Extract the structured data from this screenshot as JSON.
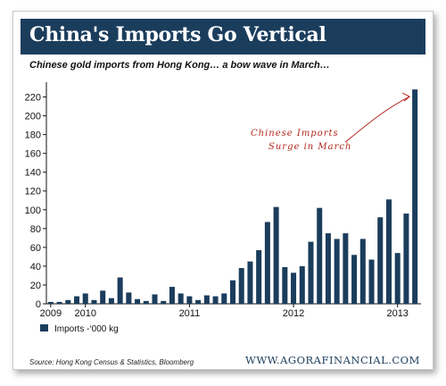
{
  "header": {
    "title": "China's Imports Go Vertical",
    "subtitle": "Chinese gold imports from Hong Kong… a bow wave in March…"
  },
  "colors": {
    "banner": "#1b3d5c",
    "bar": "#1b3d5c",
    "annotation": "#b3261e"
  },
  "chart_data": {
    "type": "bar",
    "title": "",
    "xlabel": "",
    "ylabel": "",
    "ylim": [
      0,
      230
    ],
    "y_ticks": [
      0,
      20,
      40,
      60,
      80,
      100,
      120,
      140,
      160,
      180,
      200,
      220
    ],
    "x_tick_labels": [
      {
        "label": "2009",
        "index": 0
      },
      {
        "label": "2010",
        "index": 4
      },
      {
        "label": "2011",
        "index": 16
      },
      {
        "label": "2012",
        "index": 28
      },
      {
        "label": "2013",
        "index": 40
      }
    ],
    "grid": false,
    "legend_position": "bottom-left",
    "series": [
      {
        "name": "Imports -‘000 kg",
        "values": [
          2,
          2,
          4,
          8,
          11,
          4,
          14,
          6,
          28,
          12,
          5,
          3,
          10,
          3,
          18,
          11,
          8,
          4,
          9,
          8,
          11,
          25,
          38,
          45,
          57,
          87,
          103,
          39,
          33,
          40,
          66,
          102,
          75,
          69,
          75,
          52,
          69,
          47,
          92,
          111,
          54,
          96,
          228
        ]
      }
    ],
    "annotation": [
      "Chinese Imports",
      "Surge in March"
    ]
  },
  "footer": {
    "source": "Source: Hong Kong Census & Statistics, Bloomberg",
    "brand": "WWW.AGORAFINANCIAL.COM"
  }
}
